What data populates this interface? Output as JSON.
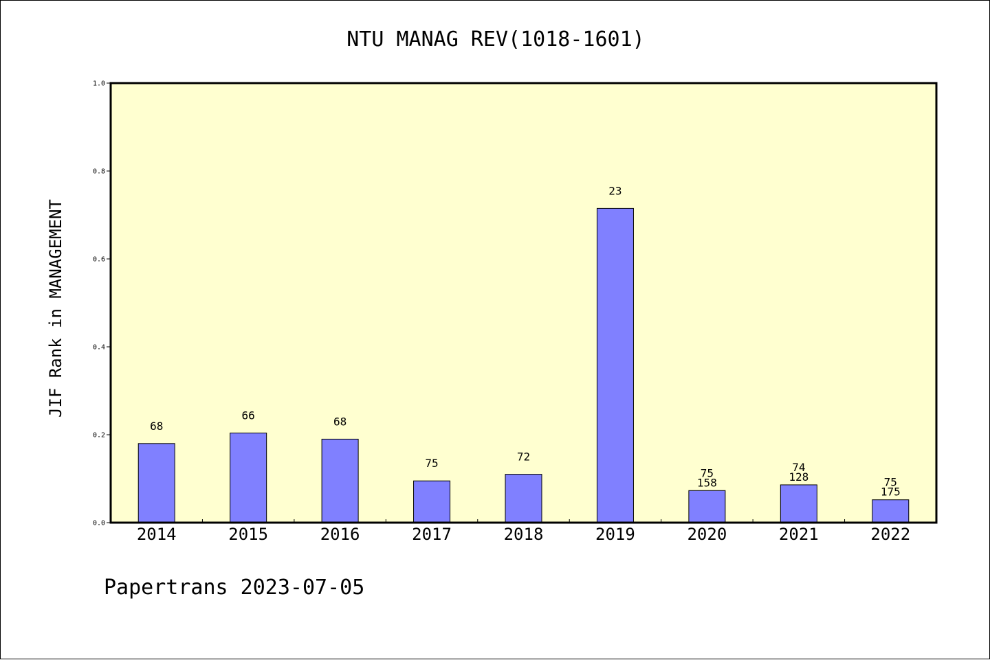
{
  "chart_data": {
    "type": "bar",
    "title": "NTU MANAG REV(1018-1601)",
    "xlabel": "",
    "ylabel": "JIF Rank in MANAGEMENT",
    "ylim": [
      0,
      1.0
    ],
    "yticks": [
      "0.0",
      "0.2",
      "0.4",
      "0.6",
      "0.8",
      "1.0"
    ],
    "categories": [
      "2014",
      "2015",
      "2016",
      "2017",
      "2018",
      "2019",
      "2020",
      "2021",
      "2022"
    ],
    "values": [
      0.18,
      0.204,
      0.19,
      0.095,
      0.11,
      0.715,
      0.073,
      0.086,
      0.052
    ],
    "rank_labels": [
      "68",
      "66",
      "68",
      "75",
      "72",
      "23",
      "75",
      "74",
      "75"
    ],
    "total_labels": [
      "",
      "",
      "",
      "",
      "",
      "",
      "158",
      "128",
      "175"
    ],
    "grid": false,
    "colors": {
      "plot_bg": "#ffffd0",
      "bar": "#8080ff",
      "border": "#000000"
    }
  },
  "footer": "Papertrans 2023-07-05"
}
